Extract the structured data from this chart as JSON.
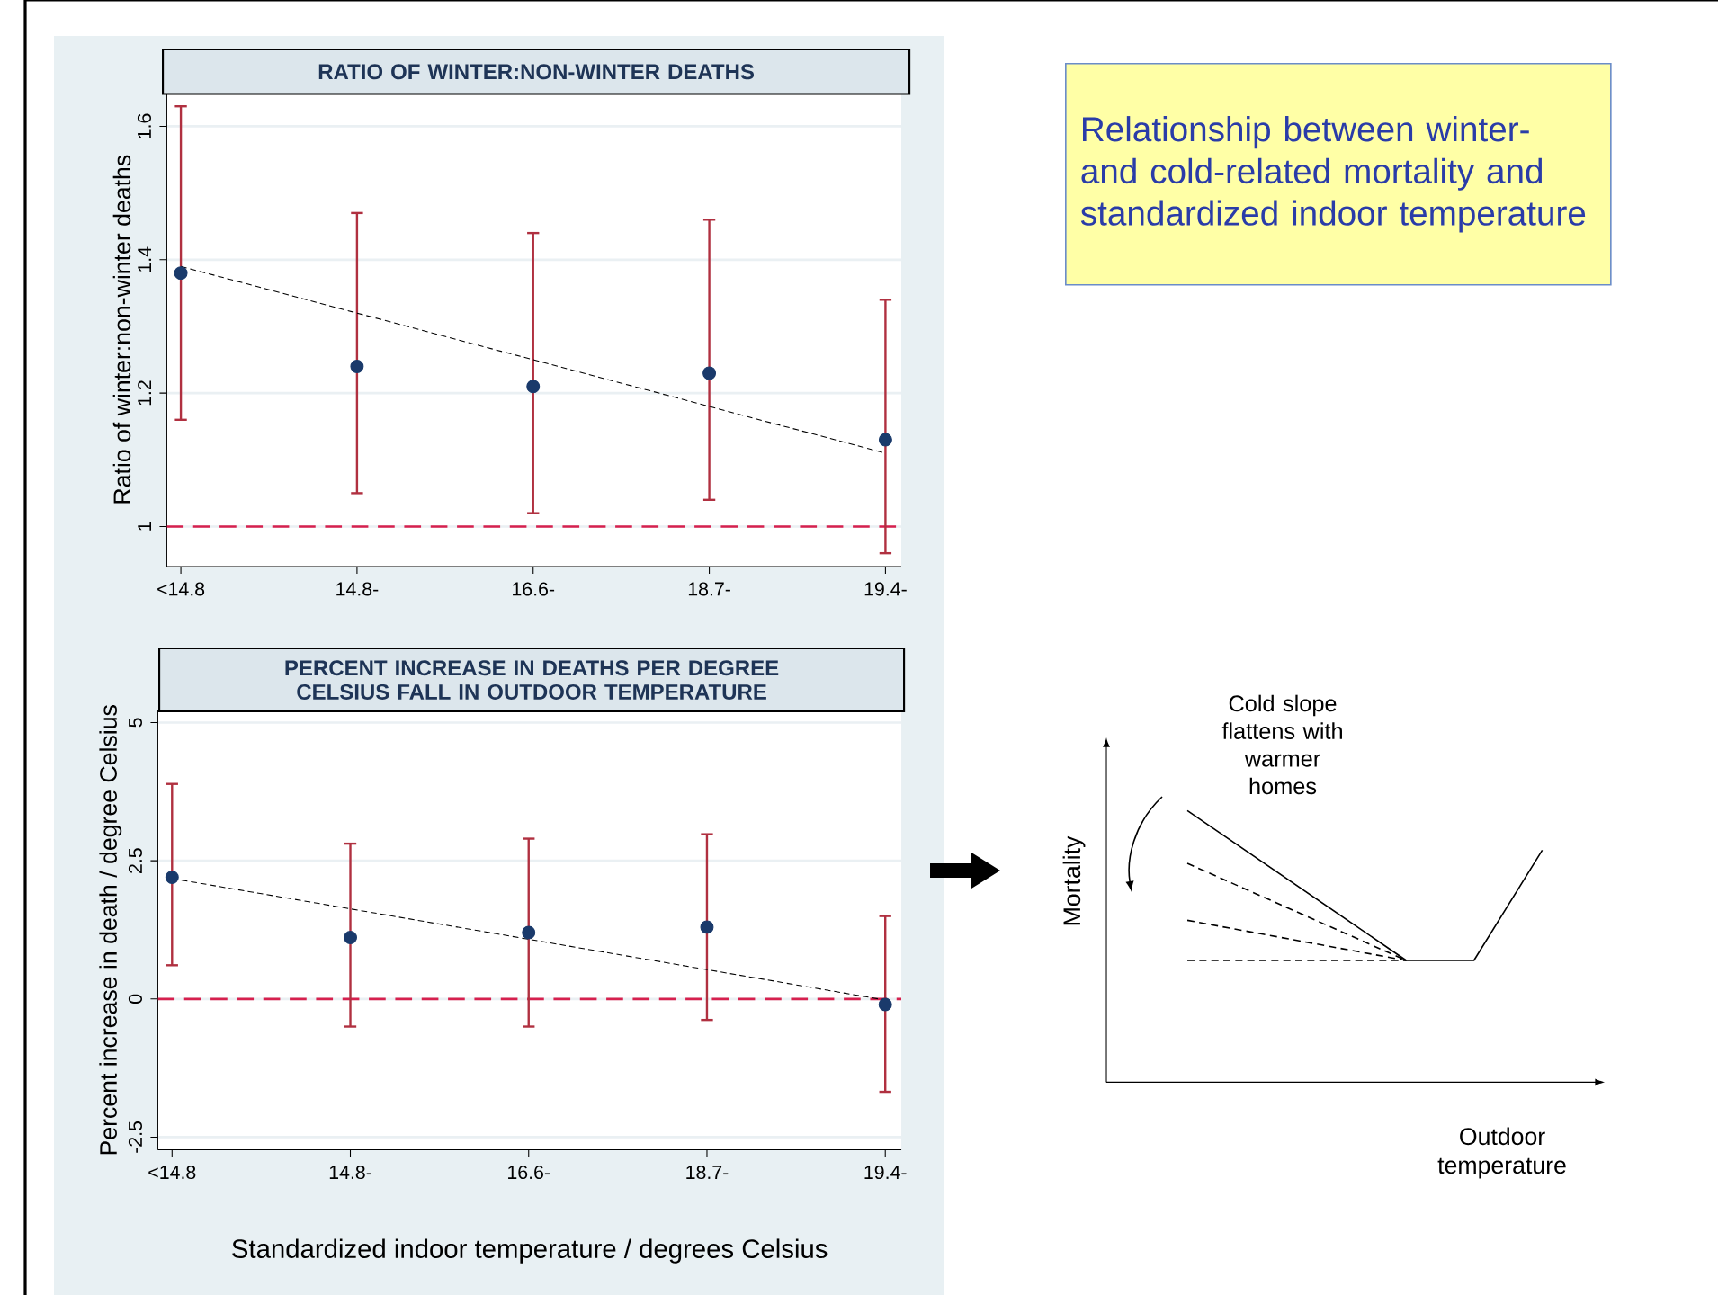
{
  "chart_data": [
    {
      "type": "scatter",
      "title": "RATIO OF WINTER:NON-WINTER DEATHS",
      "ylabel": "Ratio of winter:non-winter deaths",
      "categories": [
        "<14.8",
        "14.8-",
        "16.6-",
        "18.7-",
        "19.4-"
      ],
      "series": [
        {
          "type": "scatter",
          "color": "#1a3a6b",
          "marker": "circle",
          "values": [
            1.38,
            1.24,
            1.21,
            1.23,
            1.13
          ],
          "errors": [
            [
              1.16,
              1.63
            ],
            [
              1.05,
              1.47
            ],
            [
              1.02,
              1.44
            ],
            [
              1.04,
              1.46
            ],
            [
              0.96,
              1.34
            ]
          ]
        },
        {
          "type": "line",
          "color": "#000000",
          "line_style": "dashed",
          "x": [
            "<14.8",
            "19.4-"
          ],
          "values": [
            1.39,
            1.11
          ]
        }
      ],
      "ylim": [
        0.94,
        1.65
      ],
      "yticks": [
        1,
        1.2,
        1.4,
        1.6
      ],
      "grid": "y",
      "ref_lines": [
        {
          "axis": "y",
          "value": 1,
          "color": "#d6204e",
          "line_style": "dashed"
        }
      ]
    },
    {
      "type": "scatter",
      "title": "PERCENT INCREASE IN DEATHS PER DEGREE CELSIUS FALL IN OUTDOOR TEMPERATURE",
      "ylabel": "Percent increase in death / degree Celsius",
      "xlabel": "Standardized indoor temperature / degrees Celsius",
      "categories": [
        "<14.8",
        "14.8-",
        "16.6-",
        "18.7-",
        "19.4-"
      ],
      "series": [
        {
          "type": "scatter",
          "color": "#1a3a6b",
          "marker": "circle",
          "values": [
            2.2,
            1.11,
            1.2,
            1.3,
            -0.1
          ],
          "errors": [
            [
              0.61,
              3.89
            ],
            [
              -0.5,
              2.81
            ],
            [
              -0.5,
              2.9
            ],
            [
              -0.38,
              2.98
            ],
            [
              -1.68,
              1.5
            ]
          ]
        },
        {
          "type": "line",
          "color": "#000000",
          "line_style": "dashed",
          "x": [
            "<14.8",
            "19.4-"
          ],
          "values": [
            2.18,
            -0.02
          ]
        }
      ],
      "ylim": [
        -2.73,
        5.22
      ],
      "yticks": [
        -2.5,
        0,
        2.5,
        5
      ],
      "grid": "y",
      "ref_lines": [
        {
          "axis": "y",
          "value": 0,
          "color": "#d6204e",
          "line_style": "dashed"
        }
      ]
    },
    {
      "type": "other",
      "title": "Relationship between winter- and cold-related mortality and standardized indoor temperature",
      "xlabel": "Outdoor temperature",
      "ylabel": "Mortality",
      "annotations": [
        "Cold slope flattens with warmer homes"
      ]
    }
  ]
}
